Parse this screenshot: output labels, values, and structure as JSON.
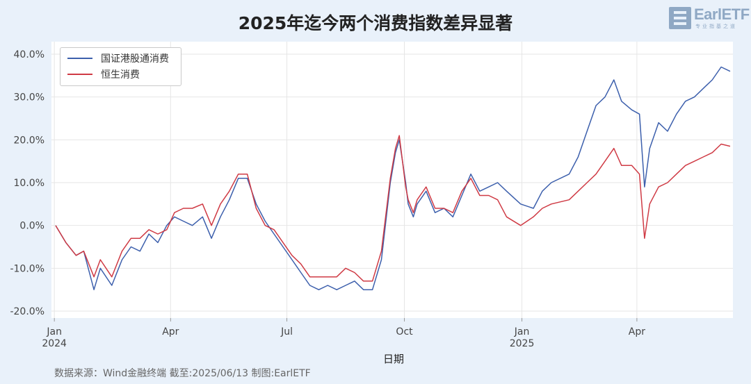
{
  "title": "2025年迄今两个消费指数差异显著",
  "logo": {
    "name": "EarlETF",
    "sub": "专业指基之道"
  },
  "footer": "数据来源：Wind金融终端 截至:2025/06/13 制图:EarlETF",
  "legend": {
    "items": [
      {
        "label": "国证港股通消费",
        "color": "#3c5fac"
      },
      {
        "label": "恒生消费",
        "color": "#cf3a44"
      }
    ]
  },
  "chart_data": {
    "type": "line",
    "xlabel": "日期",
    "ylabel": "",
    "ylim": [
      -20,
      40
    ],
    "yticks": [
      "40.0%",
      "30.0%",
      "20.0%",
      "10.0%",
      "0.0%",
      "-10.0%",
      "-20.0%"
    ],
    "xticks": [
      {
        "label": "Jan",
        "sub": "2024",
        "date": "2024-01-01"
      },
      {
        "label": "Apr",
        "sub": "",
        "date": "2024-04-01"
      },
      {
        "label": "Jul",
        "sub": "",
        "date": "2024-07-01"
      },
      {
        "label": "Oct",
        "sub": "",
        "date": "2024-10-01"
      },
      {
        "label": "Jan",
        "sub": "2025",
        "date": "2025-01-01"
      },
      {
        "label": "Apr",
        "sub": "",
        "date": "2025-04-01"
      }
    ],
    "x": [
      "2024-01-02",
      "2024-01-10",
      "2024-01-18",
      "2024-01-24",
      "2024-02-01",
      "2024-02-06",
      "2024-02-15",
      "2024-02-23",
      "2024-03-01",
      "2024-03-08",
      "2024-03-15",
      "2024-03-22",
      "2024-03-29",
      "2024-04-04",
      "2024-04-11",
      "2024-04-18",
      "2024-04-26",
      "2024-05-03",
      "2024-05-10",
      "2024-05-17",
      "2024-05-24",
      "2024-05-31",
      "2024-06-07",
      "2024-06-14",
      "2024-06-21",
      "2024-06-28",
      "2024-07-05",
      "2024-07-12",
      "2024-07-19",
      "2024-07-26",
      "2024-08-02",
      "2024-08-09",
      "2024-08-16",
      "2024-08-23",
      "2024-08-30",
      "2024-09-06",
      "2024-09-13",
      "2024-09-20",
      "2024-09-24",
      "2024-09-27",
      "2024-10-02",
      "2024-10-04",
      "2024-10-08",
      "2024-10-11",
      "2024-10-18",
      "2024-10-25",
      "2024-11-01",
      "2024-11-08",
      "2024-11-15",
      "2024-11-22",
      "2024-11-29",
      "2024-12-06",
      "2024-12-13",
      "2024-12-20",
      "2024-12-31",
      "2025-01-10",
      "2025-01-17",
      "2025-01-24",
      "2025-02-07",
      "2025-02-14",
      "2025-02-21",
      "2025-02-28",
      "2025-03-07",
      "2025-03-14",
      "2025-03-20",
      "2025-03-28",
      "2025-04-03",
      "2025-04-07",
      "2025-04-11",
      "2025-04-18",
      "2025-04-25",
      "2025-05-02",
      "2025-05-09",
      "2025-05-16",
      "2025-05-23",
      "2025-05-30",
      "2025-06-06",
      "2025-06-13"
    ],
    "series": [
      {
        "name": "国证港股通消费",
        "color": "#3c5fac",
        "values": [
          0,
          -4,
          -7,
          -6,
          -15,
          -10,
          -14,
          -8,
          -5,
          -6,
          -2,
          -4,
          0,
          2,
          1,
          0,
          2,
          -3,
          2,
          6,
          11,
          11,
          5,
          1,
          -2,
          -5,
          -8,
          -11,
          -14,
          -15,
          -14,
          -15,
          -14,
          -13,
          -15,
          -15,
          -8,
          10,
          17,
          20,
          10,
          5,
          2,
          5,
          8,
          3,
          4,
          2,
          7,
          12,
          8,
          9,
          10,
          8,
          5,
          4,
          8,
          10,
          12,
          16,
          22,
          28,
          30,
          34,
          29,
          27,
          26,
          9,
          18,
          24,
          22,
          26,
          29,
          30,
          32,
          34,
          37,
          36
        ]
      },
      {
        "name": "恒生消费",
        "color": "#cf3a44",
        "values": [
          0,
          -4,
          -7,
          -6,
          -12,
          -8,
          -12,
          -6,
          -3,
          -3,
          -1,
          -2,
          -1,
          3,
          4,
          4,
          5,
          0,
          5,
          8,
          12,
          12,
          4,
          0,
          -1,
          -4,
          -7,
          -9,
          -12,
          -12,
          -12,
          -12,
          -10,
          -11,
          -13,
          -13,
          -6,
          11,
          18,
          21,
          9,
          6,
          3,
          6,
          9,
          4,
          4,
          3,
          8,
          11,
          7,
          7,
          6,
          2,
          0,
          2,
          4,
          5,
          6,
          8,
          10,
          12,
          15,
          18,
          14,
          14,
          12,
          -3,
          5,
          9,
          10,
          12,
          14,
          15,
          16,
          17,
          19,
          18.5
        ]
      }
    ]
  }
}
